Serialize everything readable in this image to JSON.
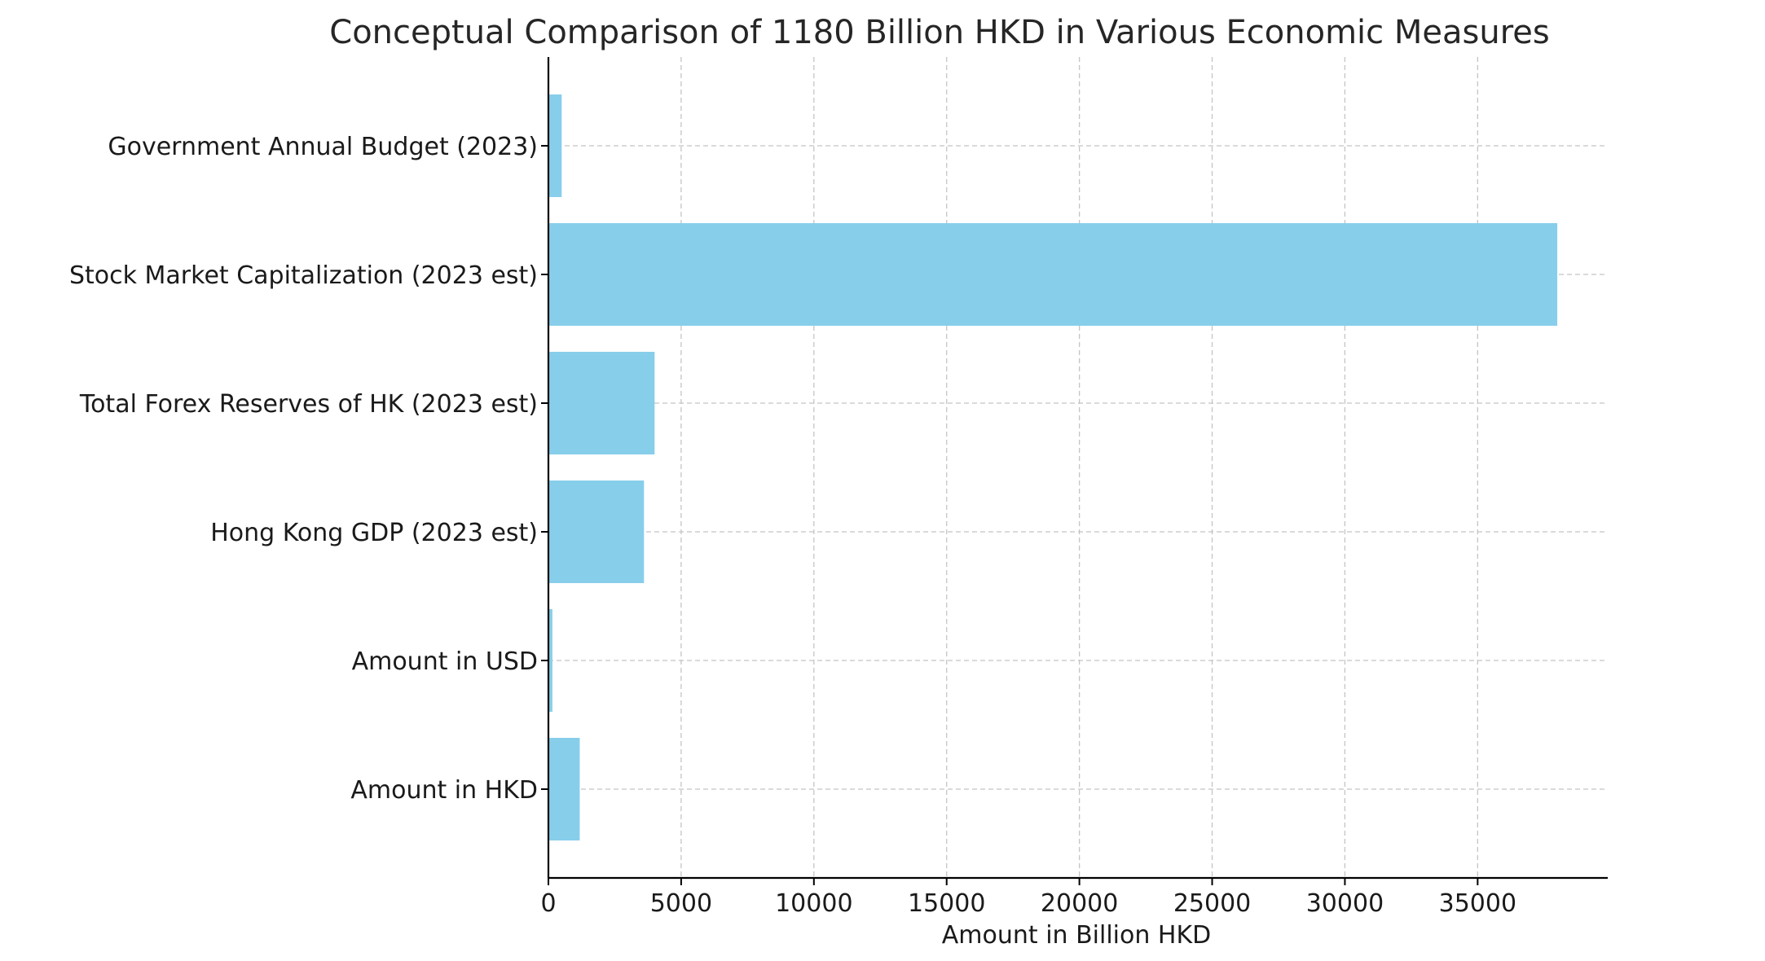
{
  "chart_data": {
    "type": "bar",
    "orientation": "horizontal",
    "title": "Conceptual Comparison of 1180 Billion HKD in Various Economic Measures",
    "xlabel": "Amount in Billion HKD",
    "ylabel": "",
    "categories": [
      "Amount in HKD",
      "Amount in USD",
      "Hong Kong GDP (2023 est)",
      "Total Forex Reserves of HK (2023 est)",
      "Stock Market Capitalization (2023 est)",
      "Government Annual Budget (2023)"
    ],
    "values": [
      1180,
      151,
      3600,
      4000,
      38000,
      500
    ],
    "xlim": [
      0,
      39900
    ],
    "xticks": [
      0,
      5000,
      10000,
      15000,
      20000,
      25000,
      30000,
      35000
    ],
    "xtick_labels": [
      "0",
      "5000",
      "10000",
      "15000",
      "20000",
      "25000",
      "30000",
      "35000"
    ],
    "grid": true,
    "bar_color": "#87ceeb"
  }
}
